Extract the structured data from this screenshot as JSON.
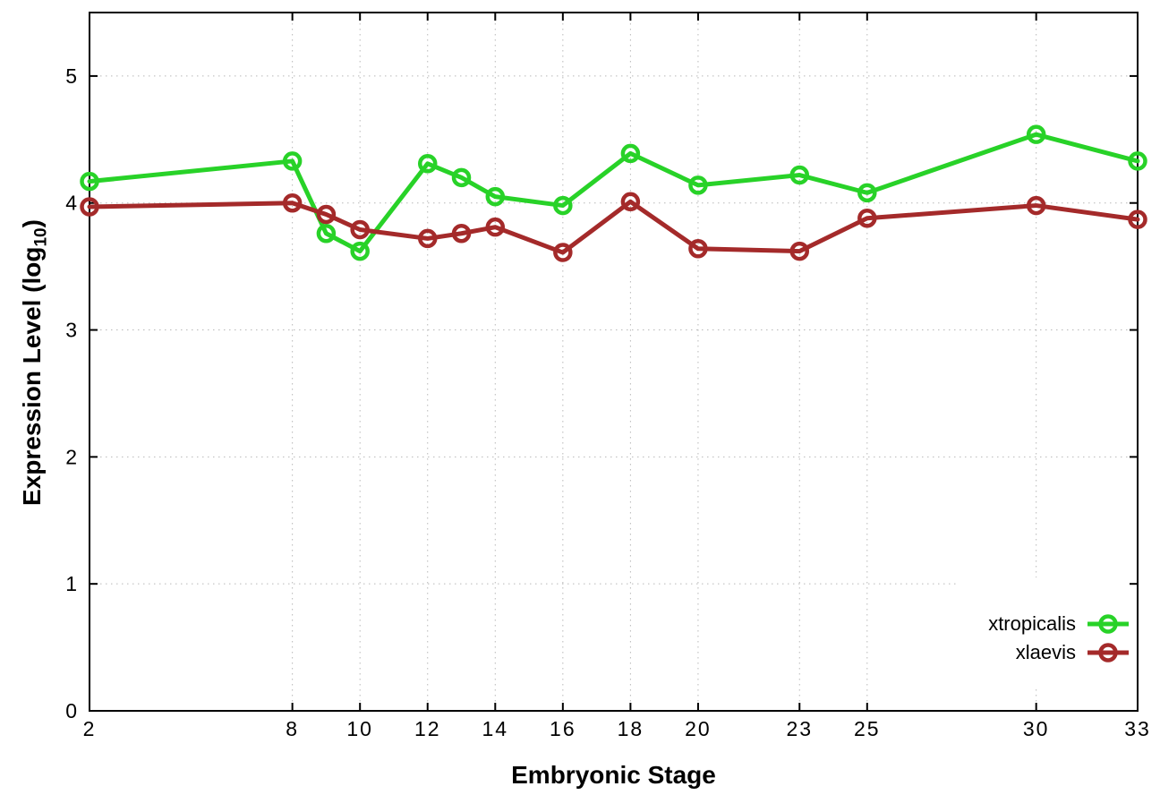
{
  "figure": {
    "background": "#ffffff",
    "border_color": "#000000",
    "grid_color": "#b8b8b8"
  },
  "chart_data": {
    "type": "line",
    "title": "",
    "xlabel": "Embryonic Stage",
    "ylabel": "Expression Level (log10)",
    "ylabel_display": {
      "prefix": "Expression Level (log",
      "subscript": "10",
      "suffix": ")"
    },
    "x": [
      2,
      8,
      9,
      10,
      12,
      13,
      14,
      16,
      18,
      20,
      23,
      25,
      30,
      33
    ],
    "x_ticks": {
      "values": [
        2,
        8,
        10,
        12,
        14,
        16,
        18,
        20,
        23,
        25,
        30,
        33
      ],
      "labels": [
        "2",
        "8",
        "10",
        "12",
        "14",
        "16",
        "18",
        "20",
        "23",
        "25",
        "30",
        "33"
      ]
    },
    "y_ticks": {
      "values": [
        0,
        1,
        2,
        3,
        4,
        5
      ],
      "labels": [
        "0",
        "1",
        "2",
        "3",
        "4",
        "5"
      ]
    },
    "xlim": [
      2,
      33
    ],
    "ylim": [
      0,
      5.5
    ],
    "grid": true,
    "legend": {
      "position": "inside-bottom-right",
      "opaque": true
    },
    "series": [
      {
        "name": "xtropicalis",
        "color": "#28d228",
        "marker": "open-circle",
        "values": [
          4.17,
          4.33,
          3.76,
          3.62,
          4.31,
          4.2,
          4.05,
          3.98,
          4.39,
          4.14,
          4.22,
          4.08,
          4.54,
          4.33
        ]
      },
      {
        "name": "xlaevis",
        "color": "#a42a2a",
        "marker": "open-circle",
        "values": [
          3.97,
          4.0,
          3.91,
          3.79,
          3.72,
          3.76,
          3.81,
          3.61,
          4.01,
          3.64,
          3.62,
          3.88,
          3.98,
          3.87
        ]
      }
    ]
  }
}
